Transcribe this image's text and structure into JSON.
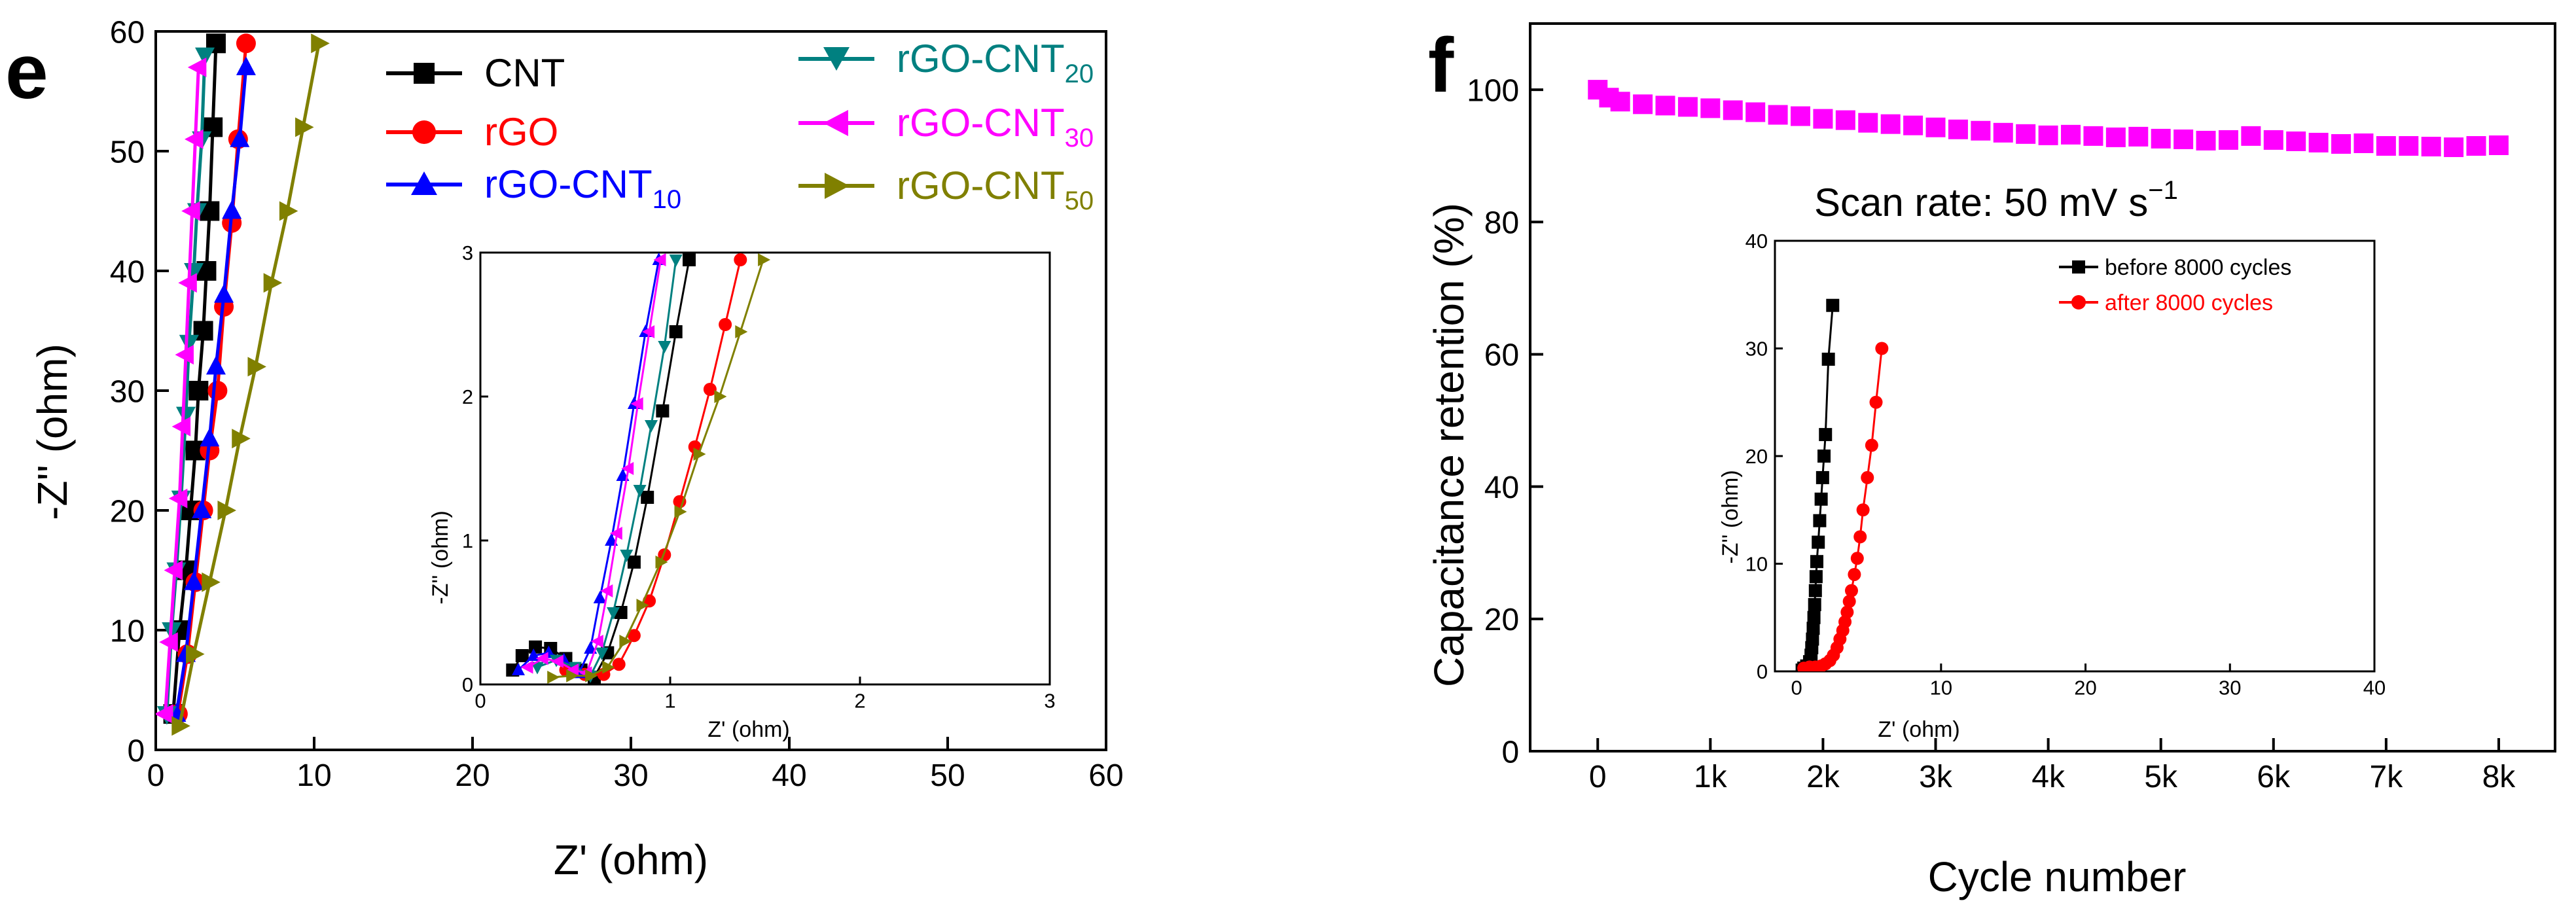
{
  "chart_data": [
    {
      "id": "panel-e-main",
      "panel_label": "e",
      "type": "scatter",
      "xlabel": "Z' (ohm)",
      "ylabel": "-Z'' (ohm)",
      "xlim": [
        0,
        60
      ],
      "ylim": [
        0,
        60
      ],
      "xticks": [
        0,
        10,
        20,
        30,
        40,
        50,
        60
      ],
      "yticks": [
        0,
        10,
        20,
        30,
        40,
        50,
        60
      ],
      "series": [
        {
          "name": "CNT",
          "base": "CNT",
          "sub": "",
          "color": "#000000",
          "marker": "square",
          "x": [
            1.1,
            1.5,
            1.9,
            2.2,
            2.5,
            2.7,
            3.0,
            3.2,
            3.4,
            3.6,
            3.8
          ],
          "y": [
            3,
            10,
            15,
            20,
            25,
            30,
            35,
            40,
            45,
            52,
            59
          ]
        },
        {
          "name": "rGO",
          "base": "rGO",
          "sub": "",
          "color": "#ff0000",
          "marker": "circle",
          "x": [
            1.4,
            2.0,
            2.5,
            3.0,
            3.4,
            3.9,
            4.3,
            4.8,
            5.2,
            5.7
          ],
          "y": [
            3,
            8,
            14,
            20,
            25,
            30,
            37,
            44,
            51,
            59
          ]
        },
        {
          "name": "rGO-CNT10",
          "base": "rGO-CNT",
          "sub": "10",
          "color": "#0000ff",
          "marker": "triangle-up",
          "x": [
            1.3,
            1.9,
            2.4,
            2.9,
            3.4,
            3.8,
            4.3,
            4.8,
            5.3,
            5.7
          ],
          "y": [
            3,
            8,
            14,
            20,
            26,
            32,
            38,
            45,
            51,
            57
          ]
        },
        {
          "name": "rGO-CNT20",
          "base": "rGO-CNT",
          "sub": "20",
          "color": "#008080",
          "marker": "triangle-down",
          "x": [
            0.7,
            1.0,
            1.3,
            1.6,
            1.9,
            2.1,
            2.4,
            2.6,
            2.9,
            3.1
          ],
          "y": [
            3,
            10,
            15,
            21,
            28,
            34,
            40,
            45,
            51,
            58
          ]
        },
        {
          "name": "rGO-CNT30",
          "base": "rGO-CNT",
          "sub": "30",
          "color": "#ff00ff",
          "marker": "triangle-left",
          "x": [
            0.6,
            0.9,
            1.2,
            1.5,
            1.7,
            1.9,
            2.1,
            2.3,
            2.5,
            2.7
          ],
          "y": [
            3,
            9,
            15,
            21,
            27,
            33,
            39,
            45,
            51,
            57
          ]
        },
        {
          "name": "rGO-CNT50",
          "base": "rGO-CNT",
          "sub": "50",
          "color": "#808000",
          "marker": "triangle-right",
          "x": [
            1.5,
            2.4,
            3.4,
            4.4,
            5.3,
            6.3,
            7.3,
            8.3,
            9.3,
            10.3
          ],
          "y": [
            2,
            8,
            14,
            20,
            26,
            32,
            39,
            45,
            52,
            59
          ]
        }
      ]
    },
    {
      "id": "panel-e-inset",
      "type": "scatter",
      "xlabel": "Z' (ohm)",
      "ylabel": "-Z'' (ohm)",
      "xlim": [
        0,
        3
      ],
      "ylim": [
        0,
        3
      ],
      "xticks": [
        0,
        1,
        2,
        3
      ],
      "yticks": [
        0,
        1,
        2,
        3
      ],
      "series": [
        {
          "name": "CNT",
          "color": "#000000",
          "marker": "square",
          "x": [
            0.17,
            0.22,
            0.29,
            0.37,
            0.45,
            0.53,
            0.6,
            0.67,
            0.74,
            0.81,
            0.88,
            0.96,
            1.03,
            1.1
          ],
          "y": [
            0.1,
            0.2,
            0.26,
            0.25,
            0.18,
            0.1,
            0.05,
            0.22,
            0.5,
            0.85,
            1.3,
            1.9,
            2.45,
            2.95
          ]
        },
        {
          "name": "rGO",
          "color": "#ff0000",
          "marker": "circle",
          "x": [
            0.45,
            0.55,
            0.65,
            0.73,
            0.81,
            0.89,
            0.97,
            1.05,
            1.13,
            1.21,
            1.29,
            1.37
          ],
          "y": [
            0.1,
            0.07,
            0.07,
            0.14,
            0.34,
            0.58,
            0.9,
            1.27,
            1.65,
            2.05,
            2.5,
            2.95
          ]
        },
        {
          "name": "rGO-CNT10",
          "color": "#0000ff",
          "marker": "triangle-up",
          "x": [
            0.2,
            0.28,
            0.36,
            0.44,
            0.52,
            0.58,
            0.63,
            0.69,
            0.75,
            0.81,
            0.87,
            0.94
          ],
          "y": [
            0.1,
            0.2,
            0.22,
            0.17,
            0.08,
            0.25,
            0.6,
            1.0,
            1.45,
            1.95,
            2.45,
            2.95
          ]
        },
        {
          "name": "rGO-CNT20",
          "color": "#008080",
          "marker": "triangle-down",
          "x": [
            0.3,
            0.4,
            0.5,
            0.58,
            0.64,
            0.7,
            0.77,
            0.84,
            0.9,
            0.97,
            1.03
          ],
          "y": [
            0.12,
            0.17,
            0.12,
            0.06,
            0.22,
            0.5,
            0.9,
            1.35,
            1.8,
            2.35,
            2.95
          ]
        },
        {
          "name": "rGO-CNT30",
          "color": "#ff00ff",
          "marker": "triangle-left",
          "x": [
            0.25,
            0.33,
            0.41,
            0.49,
            0.56,
            0.62,
            0.67,
            0.72,
            0.78,
            0.83,
            0.89,
            0.95
          ],
          "y": [
            0.12,
            0.18,
            0.16,
            0.1,
            0.08,
            0.3,
            0.65,
            1.05,
            1.5,
            1.95,
            2.45,
            2.95
          ]
        },
        {
          "name": "rGO-CNT50",
          "color": "#808000",
          "marker": "triangle-right",
          "x": [
            0.38,
            0.48,
            0.58,
            0.67,
            0.76,
            0.85,
            0.95,
            1.05,
            1.15,
            1.26,
            1.37,
            1.49
          ],
          "y": [
            0.05,
            0.06,
            0.06,
            0.12,
            0.3,
            0.55,
            0.85,
            1.2,
            1.6,
            2.0,
            2.45,
            2.95
          ]
        }
      ]
    },
    {
      "id": "panel-f-main",
      "panel_label": "f",
      "type": "scatter",
      "xlabel": "Cycle number",
      "ylabel": "Capacitance retention (%)",
      "xlim": [
        -600,
        8500
      ],
      "ylim": [
        0,
        110
      ],
      "xticks": [
        0,
        1000,
        2000,
        3000,
        4000,
        5000,
        6000,
        7000,
        8000
      ],
      "xticklabels": [
        "0",
        "1k",
        "2k",
        "3k",
        "4k",
        "5k",
        "6k",
        "7k",
        "8k"
      ],
      "yticks": [
        0,
        20,
        40,
        60,
        80,
        100
      ],
      "annotation": "Scan rate: 50 mV s",
      "annotation_sup": "−1",
      "series": [
        {
          "name": "Capacitance retention",
          "color": "#ff00ff",
          "marker": "square",
          "x": [
            0,
            100,
            200,
            400,
            600,
            800,
            1000,
            1200,
            1400,
            1600,
            1800,
            2000,
            2200,
            2400,
            2600,
            2800,
            3000,
            3200,
            3400,
            3600,
            3800,
            4000,
            4200,
            4400,
            4600,
            4800,
            5000,
            5200,
            5400,
            5600,
            5800,
            6000,
            6200,
            6400,
            6600,
            6800,
            7000,
            7200,
            7400,
            7600,
            7800,
            8000
          ],
          "y": [
            100,
            98.8,
            98.2,
            97.8,
            97.6,
            97.4,
            97.2,
            96.9,
            96.6,
            96.2,
            96.0,
            95.6,
            95.4,
            95.0,
            94.8,
            94.6,
            94.3,
            94.0,
            93.8,
            93.5,
            93.3,
            93.1,
            93.2,
            93.0,
            92.8,
            92.9,
            92.6,
            92.5,
            92.3,
            92.4,
            93.0,
            92.4,
            92.2,
            92.0,
            91.8,
            91.9,
            91.5,
            91.5,
            91.4,
            91.3,
            91.5,
            91.6
          ]
        }
      ]
    },
    {
      "id": "panel-f-inset",
      "type": "scatter",
      "xlabel": "Z' (ohm)",
      "ylabel": "-Z'' (ohm)",
      "xlim": [
        -1.5,
        40
      ],
      "ylim": [
        0,
        40
      ],
      "xticks": [
        0,
        10,
        20,
        30,
        40
      ],
      "yticks": [
        0,
        10,
        20,
        30,
        40
      ],
      "series": [
        {
          "name": "before 8000 cycles",
          "color": "#000000",
          "marker": "square",
          "x": [
            0.5,
            0.7,
            0.9,
            1.0,
            1.05,
            1.1,
            1.15,
            1.2,
            1.25,
            1.3,
            1.35,
            1.4,
            1.5,
            1.6,
            1.7,
            1.8,
            1.9,
            2.0,
            2.2,
            2.5
          ],
          "y": [
            0.3,
            0.5,
            0.9,
            1.5,
            2.2,
            3.0,
            4.0,
            5.0,
            6.2,
            7.5,
            8.8,
            10.2,
            12.0,
            14.0,
            16.0,
            18.0,
            20.0,
            22.0,
            29,
            34
          ]
        },
        {
          "name": "after 8000 cycles",
          "color": "#ff0000",
          "marker": "circle",
          "x": [
            0.5,
            0.9,
            1.3,
            1.7,
            2.0,
            2.3,
            2.55,
            2.8,
            3.0,
            3.2,
            3.35,
            3.5,
            3.65,
            3.8,
            4.0,
            4.2,
            4.4,
            4.6,
            4.9,
            5.2,
            5.5,
            5.9
          ],
          "y": [
            0.3,
            0.4,
            0.4,
            0.5,
            0.7,
            1.0,
            1.5,
            2.2,
            3.0,
            3.8,
            4.6,
            5.5,
            6.5,
            7.5,
            9.0,
            10.5,
            12.5,
            15.0,
            18.0,
            21.0,
            25.0,
            30.0
          ]
        }
      ]
    }
  ],
  "legend_f_inset": {
    "before": "before 8000 cycles",
    "after": "after 8000 cycles"
  }
}
